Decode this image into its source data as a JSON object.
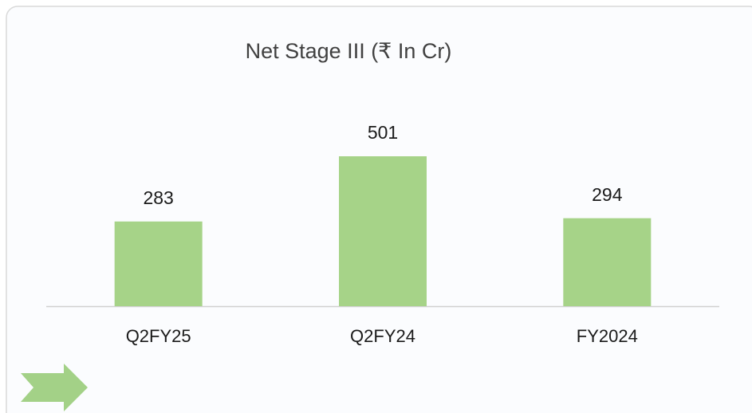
{
  "chart_data": {
    "type": "bar",
    "title": "Net Stage III (₹ In Cr)",
    "categories": [
      "Q2FY25",
      "Q2FY24",
      "FY2024"
    ],
    "values": [
      283,
      501,
      294
    ],
    "color": "#a6d388"
  }
}
